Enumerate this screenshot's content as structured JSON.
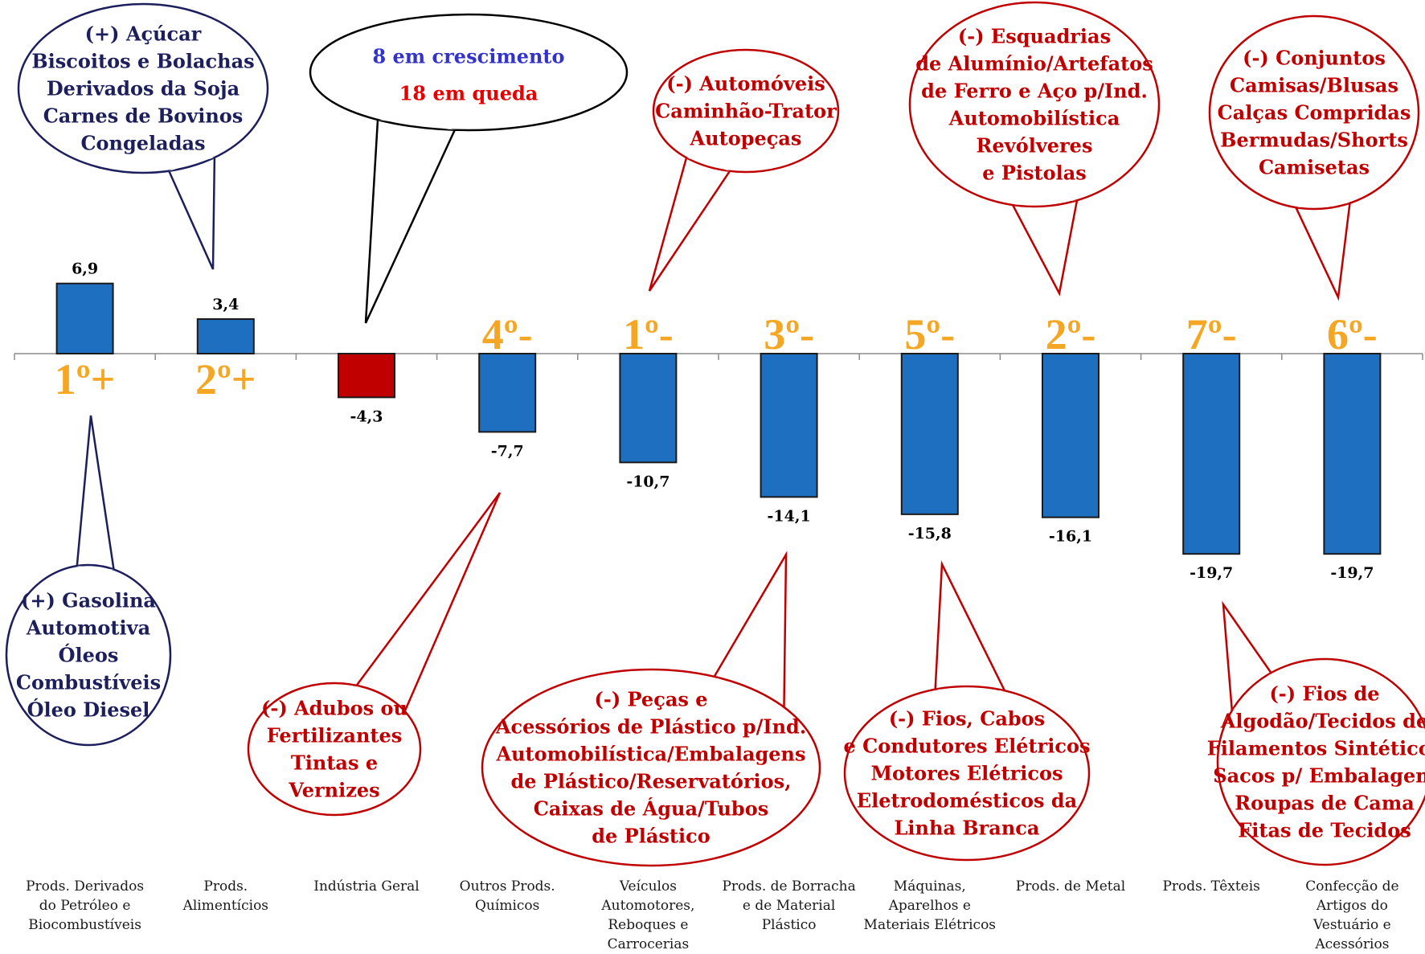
{
  "chart_data": {
    "type": "bar",
    "categories": [
      [
        "Prods. Derivados",
        "do Petróleo e",
        "Biocombustíveis"
      ],
      [
        "Prods.",
        "Alimentícios"
      ],
      [
        "Indústria Geral"
      ],
      [
        "Outros Prods.",
        "Químicos"
      ],
      [
        "Veículos",
        "Automotores,",
        "Reboques e",
        "Carrocerias"
      ],
      [
        "Prods. de Borracha",
        "e de Material",
        "Plástico"
      ],
      [
        "Máquinas,",
        "Aparelhos e",
        "Materiais Elétricos"
      ],
      [
        "Prods. de Metal"
      ],
      [
        "Prods. Têxteis"
      ],
      [
        "Confecção de",
        "Artigos do",
        "Vestuário e",
        "Acessórios"
      ]
    ],
    "values": [
      6.9,
      3.4,
      -4.3,
      -7.7,
      -10.7,
      -14.1,
      -15.8,
      -16.1,
      -19.7,
      -19.7
    ],
    "value_labels": [
      "6,9",
      "3,4",
      "-4,3",
      "-7,7",
      "-10,7",
      "-14,1",
      "-15,8",
      "-16,1",
      "-19,7",
      "-19,7"
    ],
    "ranks": [
      "1º+",
      "2º+",
      "",
      "4º-",
      "1º-",
      "3º-",
      "5º-",
      "2º-",
      "7º-",
      "6º-"
    ],
    "bar_colors": [
      "#1f6fc0",
      "#1f6fc0",
      "#c00000",
      "#1f6fc0",
      "#1f6fc0",
      "#1f6fc0",
      "#1f6fc0",
      "#1f6fc0",
      "#1f6fc0",
      "#1f6fc0"
    ],
    "ylim": [
      -21,
      8
    ],
    "grid": false,
    "title": "",
    "xlabel": "",
    "ylabel": ""
  },
  "colors": {
    "positive_bar": "#1f6fc0",
    "total_bar": "#c00000",
    "rank_label": "#f5a623",
    "positive_callout": "#1c1f5c",
    "negative_callout": "#c00000",
    "summary_growth": "#3333cc",
    "summary_decline": "#e60000"
  },
  "summary": {
    "growth": "8 em crescimento",
    "decline": "18 em queda"
  },
  "callouts": [
    {
      "tone": "positive",
      "lines": [
        "(+)  Açúcar",
        "Biscoitos e Bolachas",
        "Derivados da Soja",
        "Carnes de Bovinos",
        "Congeladas"
      ]
    },
    {
      "tone": "positive",
      "lines": [
        "(+) Gasolina",
        "Automotiva",
        "Óleos",
        "Combustíveis",
        "Óleo Diesel"
      ]
    },
    {
      "tone": "negative",
      "lines": [
        "(-) Adubos ou",
        "Fertilizantes",
        "Tintas e",
        "Vernizes"
      ]
    },
    {
      "tone": "negative",
      "lines": [
        "(-) Automóveis",
        "Caminhão-Trator",
        "Autopeças"
      ]
    },
    {
      "tone": "negative",
      "lines": [
        "(-) Peças e",
        "Acessórios de Plástico p/Ind.",
        "Automobilística/Embalagens",
        "de Plástico/Reservatórios,",
        "Caixas de Água/Tubos",
        "de Plástico"
      ]
    },
    {
      "tone": "negative",
      "lines": [
        "(-)  Fios, Cabos",
        "e Condutores Elétricos",
        "Motores Elétricos",
        "Eletrodomésticos da",
        "Linha Branca"
      ]
    },
    {
      "tone": "negative",
      "lines": [
        "(-) Esquadrias",
        "de Alumínio/Artefatos",
        "de Ferro e Aço p/Ind.",
        "Automobilística",
        "Revólveres",
        "e Pistolas"
      ]
    },
    {
      "tone": "negative",
      "lines": [
        "(-) Fios de",
        "Algodão/Tecidos de",
        "Filamentos Sintéticos",
        "Sacos p/ Embalagem",
        "Roupas de Cama",
        "Fitas de Tecidos"
      ]
    },
    {
      "tone": "negative",
      "lines": [
        "(-) Conjuntos",
        "Camisas/Blusas",
        "Calças Compridas",
        "Bermudas/Shorts",
        "Camisetas"
      ]
    }
  ]
}
